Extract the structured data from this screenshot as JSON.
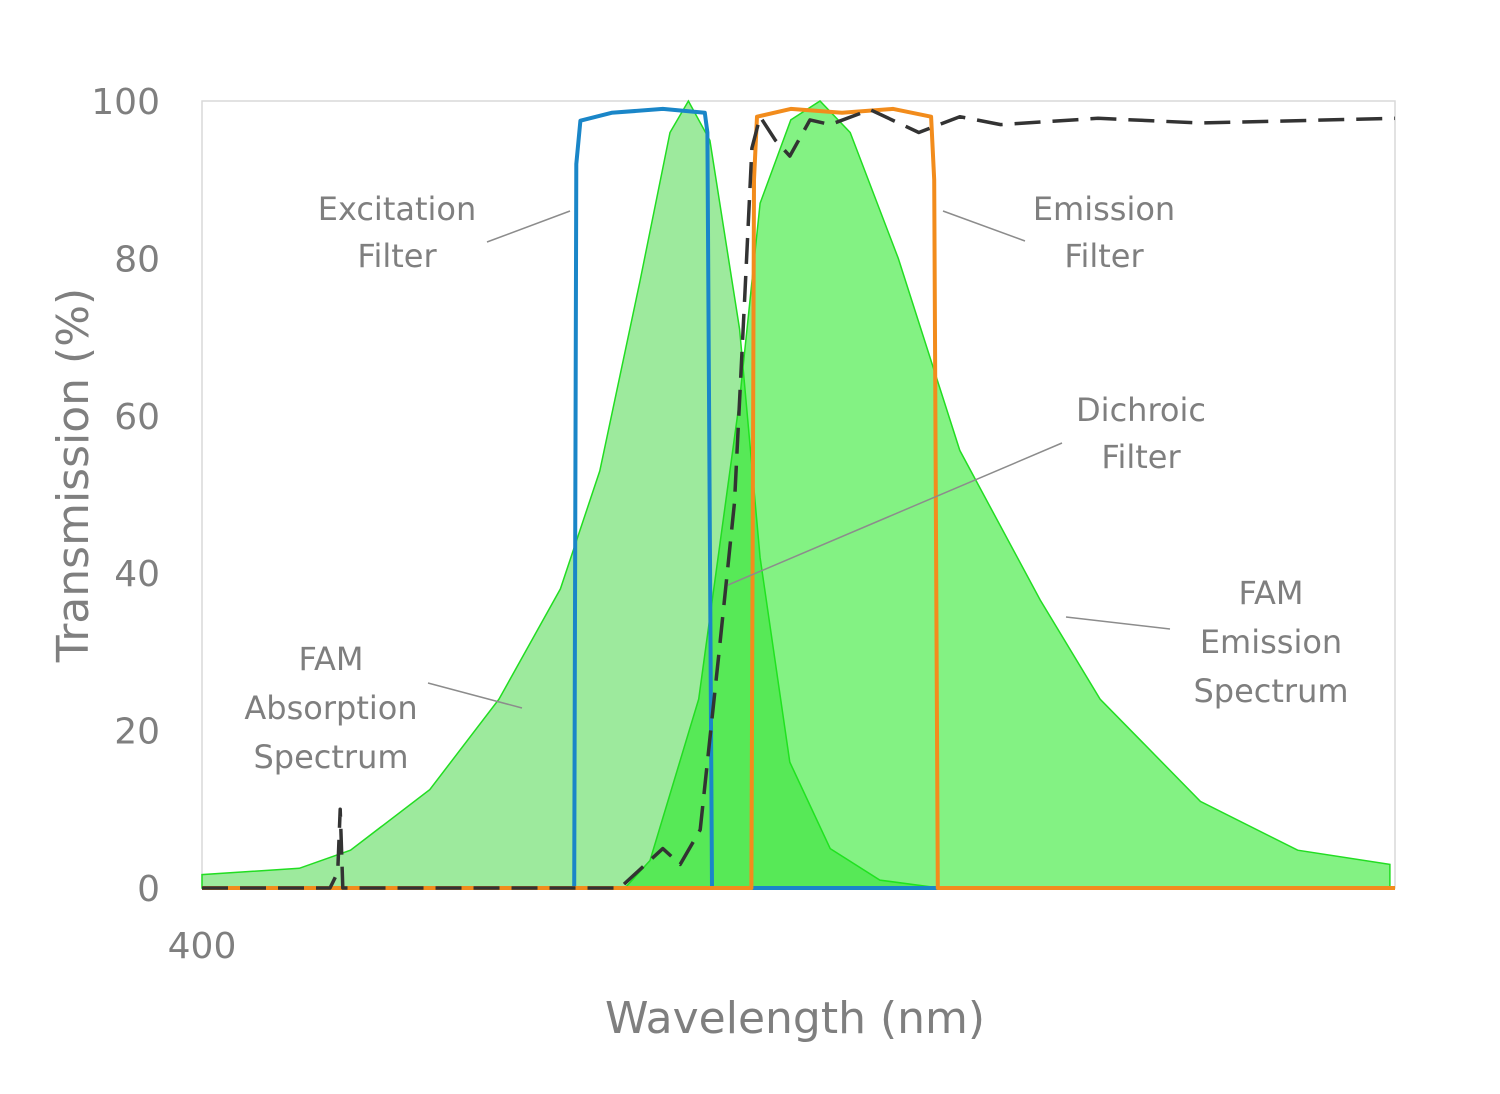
{
  "chart_data": {
    "type": "area",
    "title": "",
    "xlabel": "Wavelength (nm)",
    "ylabel": "Transmission (%)",
    "xlim": [
      400,
      633
    ],
    "ylim": [
      0,
      100
    ],
    "x_tick_labels": [
      "400"
    ],
    "x_ticks": [
      400
    ],
    "y_ticks": [
      0,
      20,
      40,
      60,
      80,
      100
    ],
    "y_tick_labels": [
      "0",
      "20",
      "40",
      "60",
      "80",
      "100"
    ],
    "grid": false,
    "legend": "none",
    "series": [
      {
        "name": "FAM Absorption Spectrum",
        "kind": "area",
        "color": "#4cd94c",
        "points": [
          [
            400,
            1.7
          ],
          [
            419,
            2.5
          ],
          [
            429,
            4.8
          ],
          [
            444.5,
            12.5
          ],
          [
            458,
            24
          ],
          [
            470,
            38
          ],
          [
            477.7,
            53
          ],
          [
            485.5,
            77
          ],
          [
            491.4,
            96
          ],
          [
            495,
            100
          ],
          [
            499.2,
            95
          ],
          [
            505,
            71
          ],
          [
            509,
            42
          ],
          [
            514.8,
            16
          ],
          [
            522.7,
            5
          ],
          [
            532.4,
            1
          ],
          [
            544,
            0
          ]
        ]
      },
      {
        "name": "FAM Emission Spectrum",
        "kind": "area",
        "color": "#1ee81e",
        "points": [
          [
            482.6,
            0
          ],
          [
            487.5,
            3.5
          ],
          [
            497,
            24
          ],
          [
            505,
            62
          ],
          [
            509,
            87
          ],
          [
            515,
            97.6
          ],
          [
            520.7,
            100
          ],
          [
            526.6,
            96
          ],
          [
            536,
            80
          ],
          [
            548,
            55.6
          ],
          [
            563.7,
            36.6
          ],
          [
            575.4,
            24
          ],
          [
            595,
            11
          ],
          [
            614,
            4.8
          ],
          [
            632,
            3
          ],
          [
            632,
            0
          ]
        ]
      },
      {
        "name": "Excitation Filter",
        "kind": "line",
        "color": "#1a86c8",
        "points": [
          [
            400,
            0
          ],
          [
            472.7,
            0
          ],
          [
            473.1,
            92
          ],
          [
            473.9,
            97.5
          ],
          [
            480,
            98.5
          ],
          [
            490,
            99
          ],
          [
            498.2,
            98.5
          ],
          [
            498.7,
            96
          ],
          [
            499.6,
            0
          ],
          [
            633,
            0
          ]
        ]
      },
      {
        "name": "Emission Filter",
        "kind": "line",
        "color": "#f28c1c",
        "points": [
          [
            400,
            0
          ],
          [
            507.3,
            0
          ],
          [
            507.8,
            90
          ],
          [
            508.4,
            98
          ],
          [
            515,
            99
          ],
          [
            525,
            98.5
          ],
          [
            535,
            99
          ],
          [
            542.4,
            98
          ],
          [
            543.0,
            90
          ],
          [
            543.7,
            0
          ],
          [
            633,
            0
          ]
        ]
      },
      {
        "name": "Dichroic Filter",
        "kind": "dashed-line",
        "color": "#333333",
        "points": [
          [
            400,
            0
          ],
          [
            425,
            0
          ],
          [
            426.5,
            2
          ],
          [
            427,
            10
          ],
          [
            427.5,
            0
          ],
          [
            481.6,
            0
          ],
          [
            490,
            5
          ],
          [
            493.4,
            3
          ],
          [
            497.3,
            7.4
          ],
          [
            501,
            30
          ],
          [
            504,
            49
          ],
          [
            506,
            75
          ],
          [
            507.4,
            94
          ],
          [
            509,
            98
          ],
          [
            512,
            95
          ],
          [
            514.8,
            93
          ],
          [
            518.75,
            97.6
          ],
          [
            522.7,
            97
          ],
          [
            530.5,
            98.9
          ],
          [
            540,
            96
          ],
          [
            548,
            98
          ],
          [
            556,
            97
          ],
          [
            575,
            97.8
          ],
          [
            595,
            97.2
          ],
          [
            633,
            97.8
          ]
        ]
      }
    ],
    "annotations": [
      {
        "id": "excitation",
        "lines": [
          "Excitation",
          "Filter"
        ]
      },
      {
        "id": "emission",
        "lines": [
          "Emission",
          "Filter"
        ]
      },
      {
        "id": "dichroic",
        "lines": [
          "Dichroic",
          "Filter"
        ]
      },
      {
        "id": "fam_emission",
        "lines": [
          "FAM",
          "Emission",
          "Spectrum"
        ]
      },
      {
        "id": "fam_absorption",
        "lines": [
          "FAM",
          "Absorption",
          "Spectrum"
        ]
      }
    ]
  }
}
